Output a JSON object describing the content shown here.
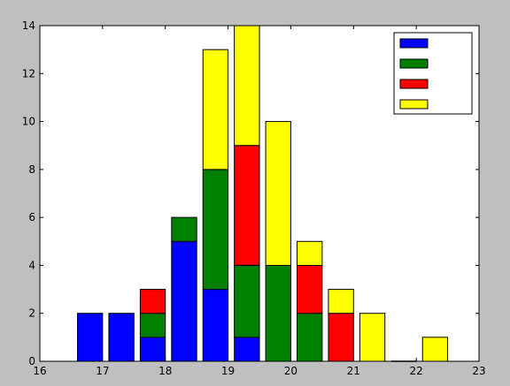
{
  "chart_data": {
    "type": "bar",
    "stacked": true,
    "x": [
      16.8,
      17.3,
      17.8,
      18.3,
      18.8,
      19.3,
      19.8,
      20.3,
      20.8,
      21.3,
      21.8,
      22.3
    ],
    "series": [
      {
        "name": "",
        "color": "#0000ff",
        "values": [
          2,
          2,
          1,
          5,
          3,
          1,
          0,
          0,
          0,
          0,
          0,
          0
        ]
      },
      {
        "name": "",
        "color": "#008000",
        "values": [
          0,
          0,
          1,
          1,
          5,
          3,
          4,
          2,
          0,
          0,
          0,
          0
        ]
      },
      {
        "name": "",
        "color": "#ff0000",
        "values": [
          0,
          0,
          1,
          0,
          0,
          5,
          0,
          2,
          2,
          0,
          0,
          0
        ]
      },
      {
        "name": "",
        "color": "#ffff00",
        "values": [
          0,
          0,
          0,
          0,
          5,
          5,
          6,
          1,
          1,
          2,
          0,
          1
        ]
      }
    ],
    "bar_width": 0.4,
    "xlim": [
      16,
      23
    ],
    "ylim": [
      0,
      14
    ],
    "xticks": [
      16,
      17,
      18,
      19,
      20,
      21,
      22,
      23
    ],
    "yticks": [
      0,
      2,
      4,
      6,
      8,
      10,
      12,
      14
    ],
    "title": "",
    "xlabel": "",
    "ylabel": "",
    "grid": false,
    "legend_position": "top-right"
  }
}
